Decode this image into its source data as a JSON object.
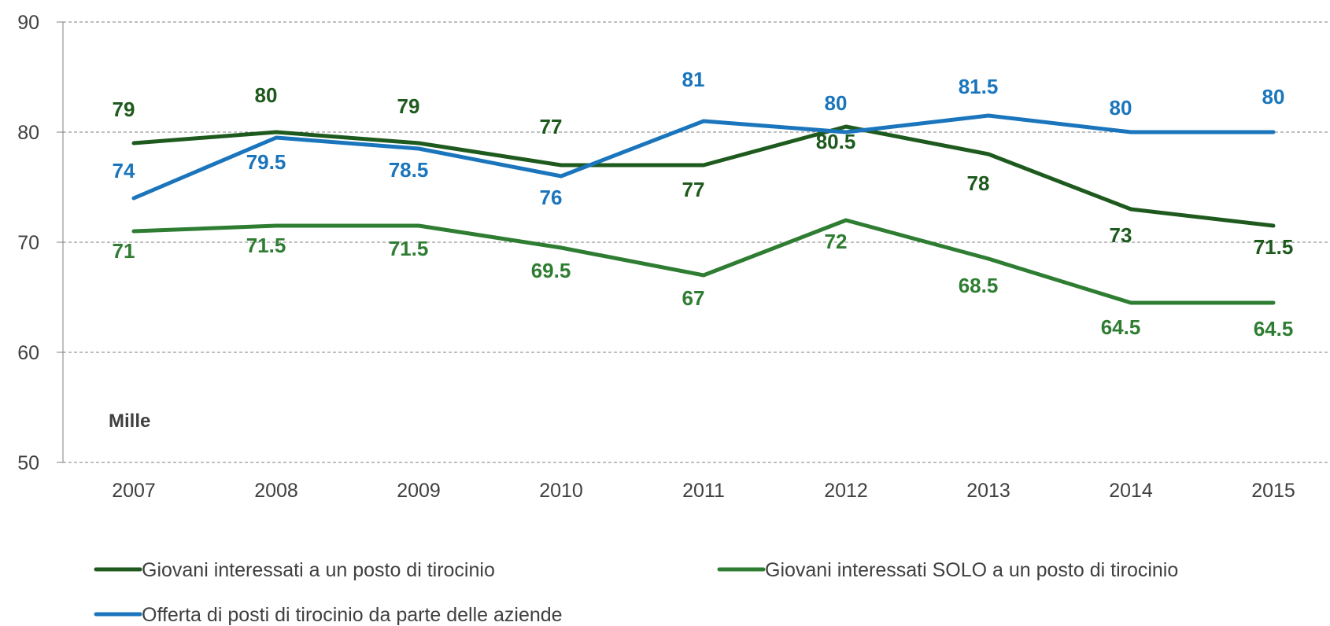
{
  "chart_data": {
    "type": "line",
    "categories": [
      "2007",
      "2008",
      "2009",
      "2010",
      "2011",
      "2012",
      "2013",
      "2014",
      "2015"
    ],
    "unit_label": "Mille",
    "ylim": [
      50,
      90
    ],
    "yticks": [
      "50",
      "60",
      "70",
      "80",
      "90"
    ],
    "grid": true,
    "legend_position": "bottom",
    "series": [
      {
        "name": "Giovani interessati a un posto di tirocinio",
        "color": "#1e5a1e",
        "values": [
          79,
          80,
          79,
          77,
          77,
          80.5,
          78,
          73,
          71.5
        ],
        "labels": [
          "79",
          "80",
          "79",
          "77",
          "77",
          "80.5",
          "78",
          "73",
          "71.5"
        ]
      },
      {
        "name": "Giovani interessati SOLO a un posto di tirocinio",
        "color": "#2e7d32",
        "values": [
          71,
          71.5,
          71.5,
          69.5,
          67,
          72,
          68.5,
          64.5,
          64.5
        ],
        "labels": [
          "71",
          "71.5",
          "71.5",
          "69.5",
          "67",
          "72",
          "68.5",
          "64.5",
          "64.5"
        ]
      },
      {
        "name": "Offerta di posti di tirocinio da parte delle aziende",
        "color": "#1a75bc",
        "values": [
          74,
          79.5,
          78.5,
          76,
          81,
          80,
          81.5,
          80,
          80
        ],
        "labels": [
          "74",
          "79.5",
          "78.5",
          "76",
          "81",
          "80",
          "81.5",
          "80",
          "80"
        ]
      }
    ]
  }
}
